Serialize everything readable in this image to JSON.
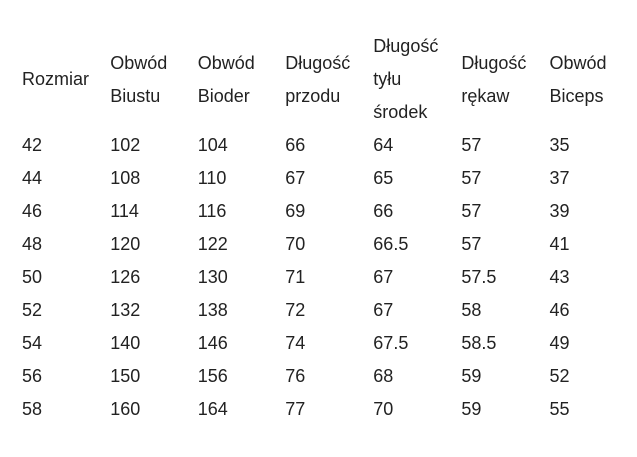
{
  "headers": [
    [
      "Rozmiar"
    ],
    [
      "Obwód",
      "Biustu"
    ],
    [
      "Obwód",
      "Bioder"
    ],
    [
      "Długość",
      "przodu"
    ],
    [
      "Długość",
      "tyłu",
      "środek"
    ],
    [
      "Długość",
      "rękaw"
    ],
    [
      "Obwód",
      "Biceps"
    ]
  ],
  "rows": [
    [
      "42",
      "102",
      "104",
      "66",
      "64",
      "57",
      "35"
    ],
    [
      "44",
      "108",
      "110",
      "67",
      "65",
      "57",
      "37"
    ],
    [
      "46",
      "114",
      "116",
      "69",
      "66",
      "57",
      "39"
    ],
    [
      "48",
      "120",
      "122",
      "70",
      "66.5",
      "57",
      "41"
    ],
    [
      "50",
      "126",
      "130",
      "71",
      "67",
      "57.5",
      "43"
    ],
    [
      "52",
      "132",
      "138",
      "72",
      "67",
      "58",
      "46"
    ],
    [
      "54",
      "140",
      "146",
      "74",
      "67.5",
      "58.5",
      "49"
    ],
    [
      "56",
      "150",
      "156",
      "76",
      "68",
      "59",
      "52"
    ],
    [
      "58",
      "160",
      "164",
      "77",
      "70",
      "59",
      "55"
    ]
  ]
}
